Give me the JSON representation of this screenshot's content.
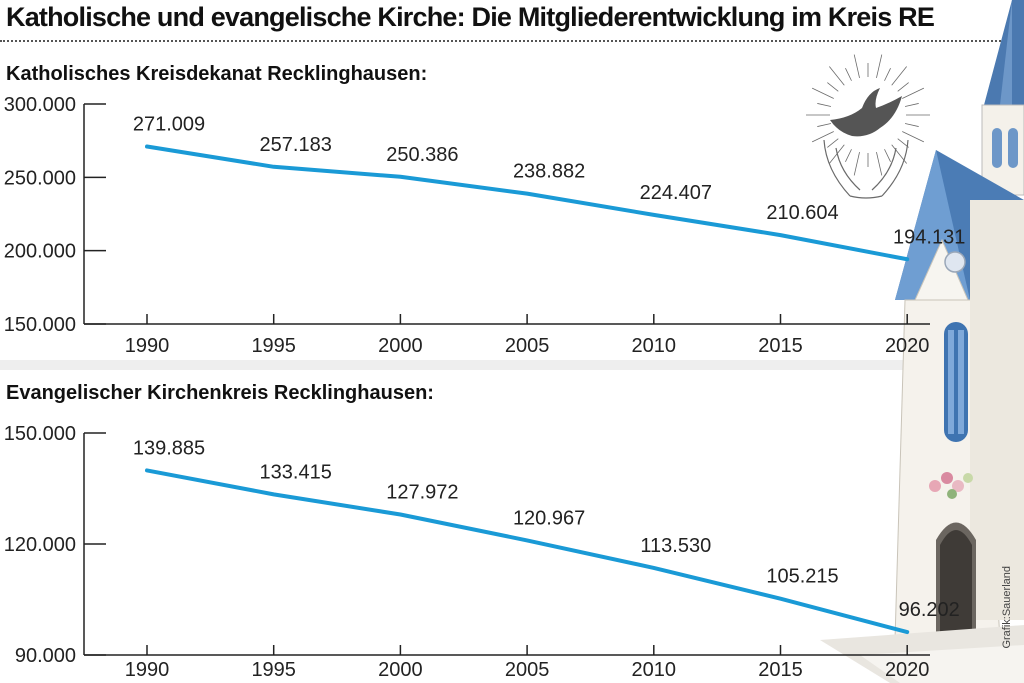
{
  "title": "Katholische und evangelische Kirche: Die Mitgliederentwicklung im Kreis RE",
  "credit": "Grafik:Sauerland",
  "colors": {
    "line": "#1a9ad6",
    "axis": "#222222"
  },
  "chart_data": [
    {
      "type": "line",
      "title": "Katholisches Kreisdekanat Recklinghausen:",
      "x": [
        "1990",
        "1995",
        "2000",
        "2005",
        "2010",
        "2015",
        "2020"
      ],
      "values": [
        271009,
        257183,
        250386,
        238882,
        224407,
        210604,
        194131
      ],
      "data_labels": [
        "271.009",
        "257.183",
        "250.386",
        "238.882",
        "224.407",
        "210.604",
        "194.131"
      ],
      "y_ticks": [
        150000,
        200000,
        250000,
        300000
      ],
      "y_tick_labels": [
        "150.000",
        "200.000",
        "250.000",
        "300.000"
      ],
      "ylim": [
        150000,
        300000
      ]
    },
    {
      "type": "line",
      "title": "Evangelischer Kirchenkreis Recklinghausen:",
      "x": [
        "1990",
        "1995",
        "2000",
        "2005",
        "2010",
        "2015",
        "2020"
      ],
      "values": [
        139885,
        133415,
        127972,
        120967,
        113530,
        105215,
        96202
      ],
      "data_labels": [
        "139.885",
        "133.415",
        "127.972",
        "120.967",
        "113.530",
        "105.215",
        "96.202"
      ],
      "y_ticks": [
        90000,
        120000,
        150000
      ],
      "y_tick_labels": [
        "90.000",
        "120.000",
        "150.000"
      ],
      "ylim": [
        90000,
        150000
      ]
    }
  ],
  "illustration": {
    "dove": "dove-in-hands-icon",
    "church": "church-tower-icon"
  }
}
